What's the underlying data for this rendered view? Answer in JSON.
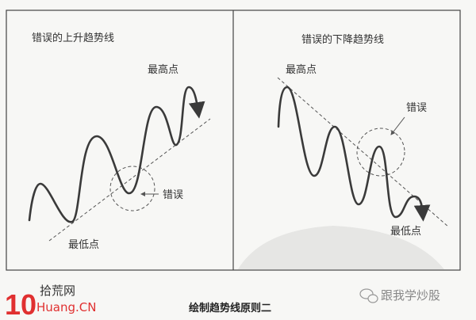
{
  "left_panel": {
    "title": "错误的上升趋势线",
    "high_label": "最高点",
    "low_label": "最低点",
    "error_label": "错误"
  },
  "right_panel": {
    "title": "错误的下降趋势线",
    "high_label": "最高点",
    "low_label": "最低点",
    "error_label": "错误"
  },
  "caption": "绘制趋势线原则二",
  "watermark_logo": {
    "number": "10",
    "name": "拾荒网",
    "domain": "Huang.CN",
    "accent": "#e03030"
  },
  "wechat": {
    "label": "跟我学炒股",
    "icon": "wechat-icon"
  }
}
